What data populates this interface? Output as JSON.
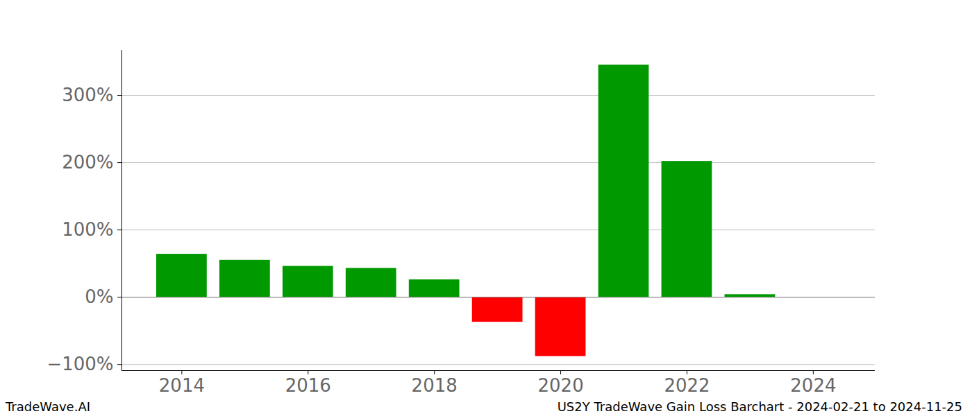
{
  "chart_data": {
    "type": "bar",
    "title": "US2Y TradeWave Gain Loss Barchart - 2024-02-21 to 2024-11-25",
    "source": "TradeWave.AI",
    "x": [
      2014,
      2015,
      2016,
      2017,
      2018,
      2019,
      2020,
      2021,
      2022,
      2023
    ],
    "values": [
      64,
      55,
      46,
      43,
      26,
      -37,
      -88,
      345,
      202,
      4
    ],
    "colors": [
      "#009900",
      "#009900",
      "#009900",
      "#009900",
      "#009900",
      "#ff0000",
      "#ff0000",
      "#009900",
      "#009900",
      "#009900"
    ],
    "xlim": [
      2013.05,
      2024.98
    ],
    "xticks": [
      2014,
      2016,
      2018,
      2020,
      2022,
      2024
    ],
    "ylim": [
      -109,
      367
    ],
    "yticks": [
      {
        "value": -100,
        "label": "−100%"
      },
      {
        "value": 0,
        "label": "0%"
      },
      {
        "value": 100,
        "label": "100%"
      },
      {
        "value": 200,
        "label": "200%"
      },
      {
        "value": 300,
        "label": "300%"
      }
    ],
    "grid": true
  }
}
